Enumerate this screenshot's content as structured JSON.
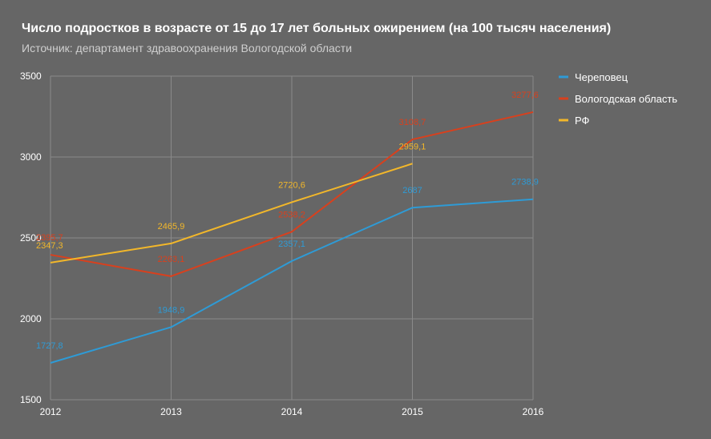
{
  "chart_data": {
    "type": "line",
    "title": "Число подростков в возрасте от 15 до 17 лет больных ожирением (на 100 тысяч населения)",
    "subtitle": "Источник: департамент здравоохранения Вологодской области",
    "x": [
      "2012",
      "2013",
      "2014",
      "2015",
      "2016"
    ],
    "ylim": [
      1500,
      3500
    ],
    "yticks": [
      "1500",
      "2000",
      "2500",
      "3000",
      "3500"
    ],
    "grid": true,
    "legend_position": "right",
    "series": [
      {
        "name": "Череповец",
        "color": "#2e9bd6",
        "values": [
          1727.8,
          1948.9,
          2357.1,
          2687,
          2738.9
        ],
        "labels": [
          "1727,8",
          "1948,9",
          "2357,1",
          "2687",
          "2738,9"
        ]
      },
      {
        "name": "Вологодская область",
        "color": "#d9401d",
        "values": [
          2395.7,
          2263.1,
          2538.2,
          3108.7,
          3277.6
        ],
        "labels": [
          "2395,7",
          "2263,1",
          "2538,2",
          "3108,7",
          "3277,6"
        ]
      },
      {
        "name": "РФ",
        "color": "#f2b72a",
        "values": [
          2347.3,
          2465.9,
          2720.6,
          2959.1,
          null
        ],
        "labels": [
          "2347,3",
          "2465,9",
          "2720,6",
          "2959,1",
          null
        ]
      }
    ]
  }
}
